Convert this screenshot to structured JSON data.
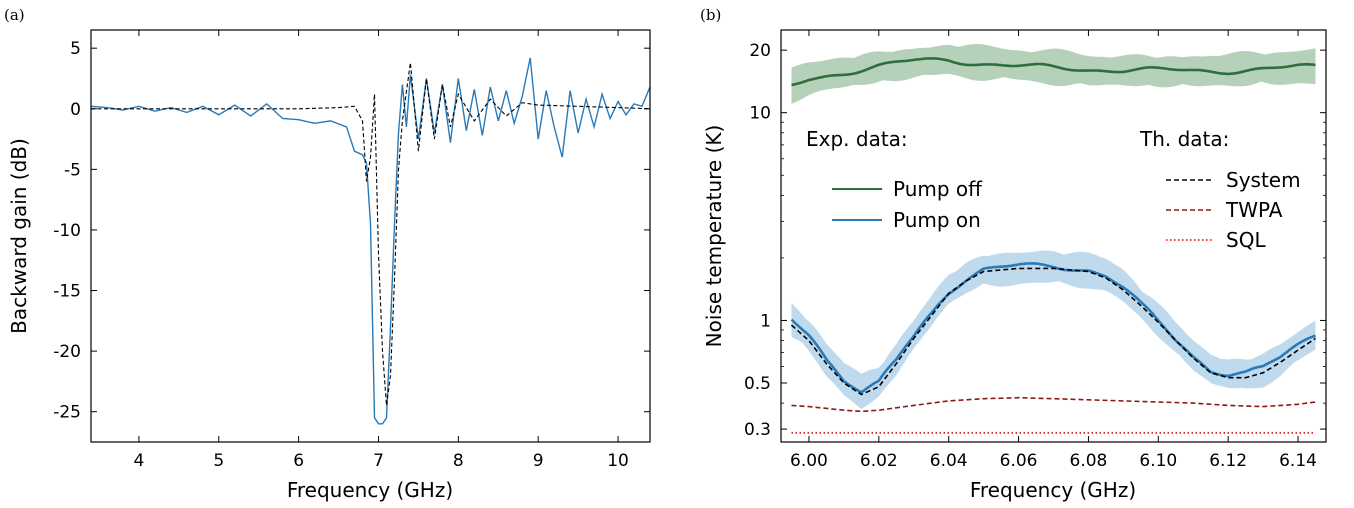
{
  "panels": {
    "a": "(a)",
    "b": "(b)"
  },
  "chart_data": [
    {
      "type": "line",
      "panel": "(a)",
      "xlabel": "Frequency (GHz)",
      "ylabel": "Backward gain (dB)",
      "xlim": [
        3.4,
        10.4
      ],
      "ylim": [
        -27.5,
        6.5
      ],
      "xticks": [
        4,
        5,
        6,
        7,
        8,
        9,
        10
      ],
      "yticks": [
        5,
        0,
        -5,
        -10,
        -15,
        -20,
        -25
      ],
      "xtick_labels": [
        "4",
        "5",
        "6",
        "7",
        "8",
        "9",
        "10"
      ],
      "ytick_labels": [
        "5",
        "0",
        "-5",
        "-10",
        "-15",
        "-20",
        "-25"
      ],
      "series": [
        {
          "style": "solid",
          "color": "#2a7ab8",
          "x": [
            3.4,
            3.6,
            3.8,
            4.0,
            4.2,
            4.4,
            4.6,
            4.8,
            5.0,
            5.2,
            5.4,
            5.6,
            5.8,
            6.0,
            6.2,
            6.4,
            6.6,
            6.7,
            6.8,
            6.85,
            6.9,
            6.95,
            7.0,
            7.05,
            7.1,
            7.15,
            7.2,
            7.25,
            7.3,
            7.35,
            7.4,
            7.5,
            7.6,
            7.7,
            7.8,
            7.9,
            8.0,
            8.1,
            8.2,
            8.3,
            8.4,
            8.5,
            8.6,
            8.7,
            8.8,
            8.9,
            9.0,
            9.1,
            9.2,
            9.3,
            9.4,
            9.5,
            9.6,
            9.7,
            9.8,
            9.9,
            10.0,
            10.1,
            10.2,
            10.3,
            10.4
          ],
          "y": [
            0.2,
            0.1,
            -0.1,
            0.2,
            -0.2,
            0.1,
            -0.3,
            0.2,
            -0.5,
            0.3,
            -0.6,
            0.4,
            -0.8,
            -0.9,
            -1.2,
            -1.0,
            -1.5,
            -3.5,
            -3.8,
            -4.5,
            -9.5,
            -25.5,
            -26.0,
            -26.0,
            -25.5,
            -18.0,
            -9.5,
            -2.0,
            2.0,
            -1.5,
            2.8,
            -2.5,
            2.5,
            -2.0,
            2.0,
            -2.8,
            2.5,
            -1.8,
            1.6,
            -2.2,
            1.8,
            -1.0,
            1.5,
            -1.2,
            1.0,
            4.2,
            -2.5,
            1.5,
            -1.5,
            -4.0,
            1.5,
            -2.0,
            0.8,
            -1.5,
            1.2,
            -0.8,
            0.6,
            -0.5,
            0.4,
            0.2,
            1.8
          ]
        },
        {
          "style": "dashed",
          "color": "#000000",
          "x": [
            3.4,
            4.0,
            5.0,
            6.0,
            6.5,
            6.7,
            6.8,
            6.85,
            6.9,
            6.95,
            7.0,
            7.05,
            7.1,
            7.15,
            7.2,
            7.25,
            7.3,
            7.4,
            7.5,
            7.6,
            7.7,
            7.8,
            7.9,
            8.0,
            8.2,
            8.4,
            8.6,
            8.8,
            9.0,
            9.5,
            10.0,
            10.4
          ],
          "y": [
            0.0,
            0.0,
            0.0,
            0.0,
            0.1,
            0.2,
            -1.0,
            -6.0,
            -4.0,
            1.2,
            -12.0,
            -20.0,
            -24.5,
            -22.0,
            -14.0,
            -5.0,
            -1.0,
            3.8,
            -3.5,
            2.5,
            -2.5,
            2.0,
            -1.5,
            1.2,
            -1.0,
            0.8,
            -0.6,
            0.5,
            0.3,
            0.2,
            0.1,
            0.0
          ]
        }
      ]
    },
    {
      "type": "line",
      "panel": "(b)",
      "xlabel": "Frequency (GHz)",
      "ylabel": "Noise temperature (K)",
      "yscale": "log",
      "xlim": [
        5.992,
        6.148
      ],
      "ylim": [
        0.26,
        25
      ],
      "xticks": [
        6.0,
        6.02,
        6.04,
        6.06,
        6.08,
        6.1,
        6.12,
        6.14
      ],
      "yticks": [
        20,
        10,
        1,
        0.5,
        0.3
      ],
      "xtick_labels": [
        "6.00",
        "6.02",
        "6.04",
        "6.06",
        "6.08",
        "6.10",
        "6.12",
        "6.14"
      ],
      "ytick_labels": [
        "20",
        "10",
        "1",
        "0.5",
        "0.3"
      ],
      "legend": {
        "exp_title": "Exp. data:",
        "th_title": "Th. data:",
        "exp": [
          "Pump off",
          "Pump on"
        ],
        "th": [
          "System",
          "TWPA",
          "SQL"
        ]
      },
      "series": [
        {
          "name": "Pump off",
          "group": "exp",
          "style": "solid",
          "color": "#2e6e3e",
          "band_color": "#a9c9ad",
          "x": [
            5.995,
            6.0,
            6.01,
            6.02,
            6.03,
            6.04,
            6.05,
            6.06,
            6.07,
            6.08,
            6.09,
            6.1,
            6.11,
            6.12,
            6.13,
            6.14,
            6.145
          ],
          "y": [
            13.5,
            14.5,
            15.5,
            16.5,
            17.5,
            18.0,
            17.5,
            17.0,
            16.5,
            16.0,
            15.8,
            15.8,
            16.0,
            16.2,
            16.4,
            16.6,
            16.6
          ]
        },
        {
          "name": "Pump on",
          "group": "exp",
          "style": "solid",
          "color": "#2a7ab8",
          "band_color": "#b5d3ea",
          "x": [
            5.995,
            6.0,
            6.005,
            6.01,
            6.015,
            6.02,
            6.025,
            6.03,
            6.035,
            6.04,
            6.045,
            6.05,
            6.06,
            6.07,
            6.08,
            6.085,
            6.09,
            6.095,
            6.1,
            6.105,
            6.11,
            6.115,
            6.12,
            6.125,
            6.13,
            6.135,
            6.14,
            6.145
          ],
          "y": [
            1.0,
            0.85,
            0.65,
            0.52,
            0.45,
            0.5,
            0.65,
            0.85,
            1.1,
            1.4,
            1.6,
            1.75,
            1.8,
            1.8,
            1.75,
            1.65,
            1.45,
            1.2,
            1.0,
            0.82,
            0.68,
            0.58,
            0.55,
            0.55,
            0.58,
            0.65,
            0.75,
            0.85
          ]
        },
        {
          "name": "System",
          "group": "th",
          "style": "dashed",
          "color": "#000000",
          "x": [
            5.995,
            6.0,
            6.005,
            6.01,
            6.015,
            6.02,
            6.025,
            6.03,
            6.035,
            6.04,
            6.045,
            6.05,
            6.06,
            6.07,
            6.08,
            6.085,
            6.09,
            6.095,
            6.1,
            6.105,
            6.11,
            6.115,
            6.12,
            6.125,
            6.13,
            6.135,
            6.14,
            6.145
          ],
          "y": [
            0.95,
            0.8,
            0.62,
            0.5,
            0.44,
            0.48,
            0.62,
            0.82,
            1.05,
            1.35,
            1.55,
            1.72,
            1.78,
            1.78,
            1.72,
            1.6,
            1.4,
            1.18,
            0.98,
            0.8,
            0.66,
            0.56,
            0.53,
            0.53,
            0.56,
            0.63,
            0.72,
            0.82
          ]
        },
        {
          "name": "TWPA",
          "group": "th",
          "style": "dashed",
          "color": "#8b1a1a",
          "x": [
            5.995,
            6.0,
            6.01,
            6.015,
            6.02,
            6.03,
            6.04,
            6.05,
            6.06,
            6.07,
            6.08,
            6.09,
            6.1,
            6.11,
            6.12,
            6.13,
            6.14,
            6.145
          ],
          "y": [
            0.39,
            0.385,
            0.37,
            0.365,
            0.37,
            0.39,
            0.41,
            0.42,
            0.425,
            0.42,
            0.415,
            0.41,
            0.405,
            0.4,
            0.39,
            0.385,
            0.395,
            0.405
          ]
        },
        {
          "name": "SQL",
          "group": "th",
          "style": "dotted",
          "color": "#d62728",
          "x": [
            5.995,
            6.145
          ],
          "y": [
            0.288,
            0.288
          ]
        }
      ]
    }
  ]
}
